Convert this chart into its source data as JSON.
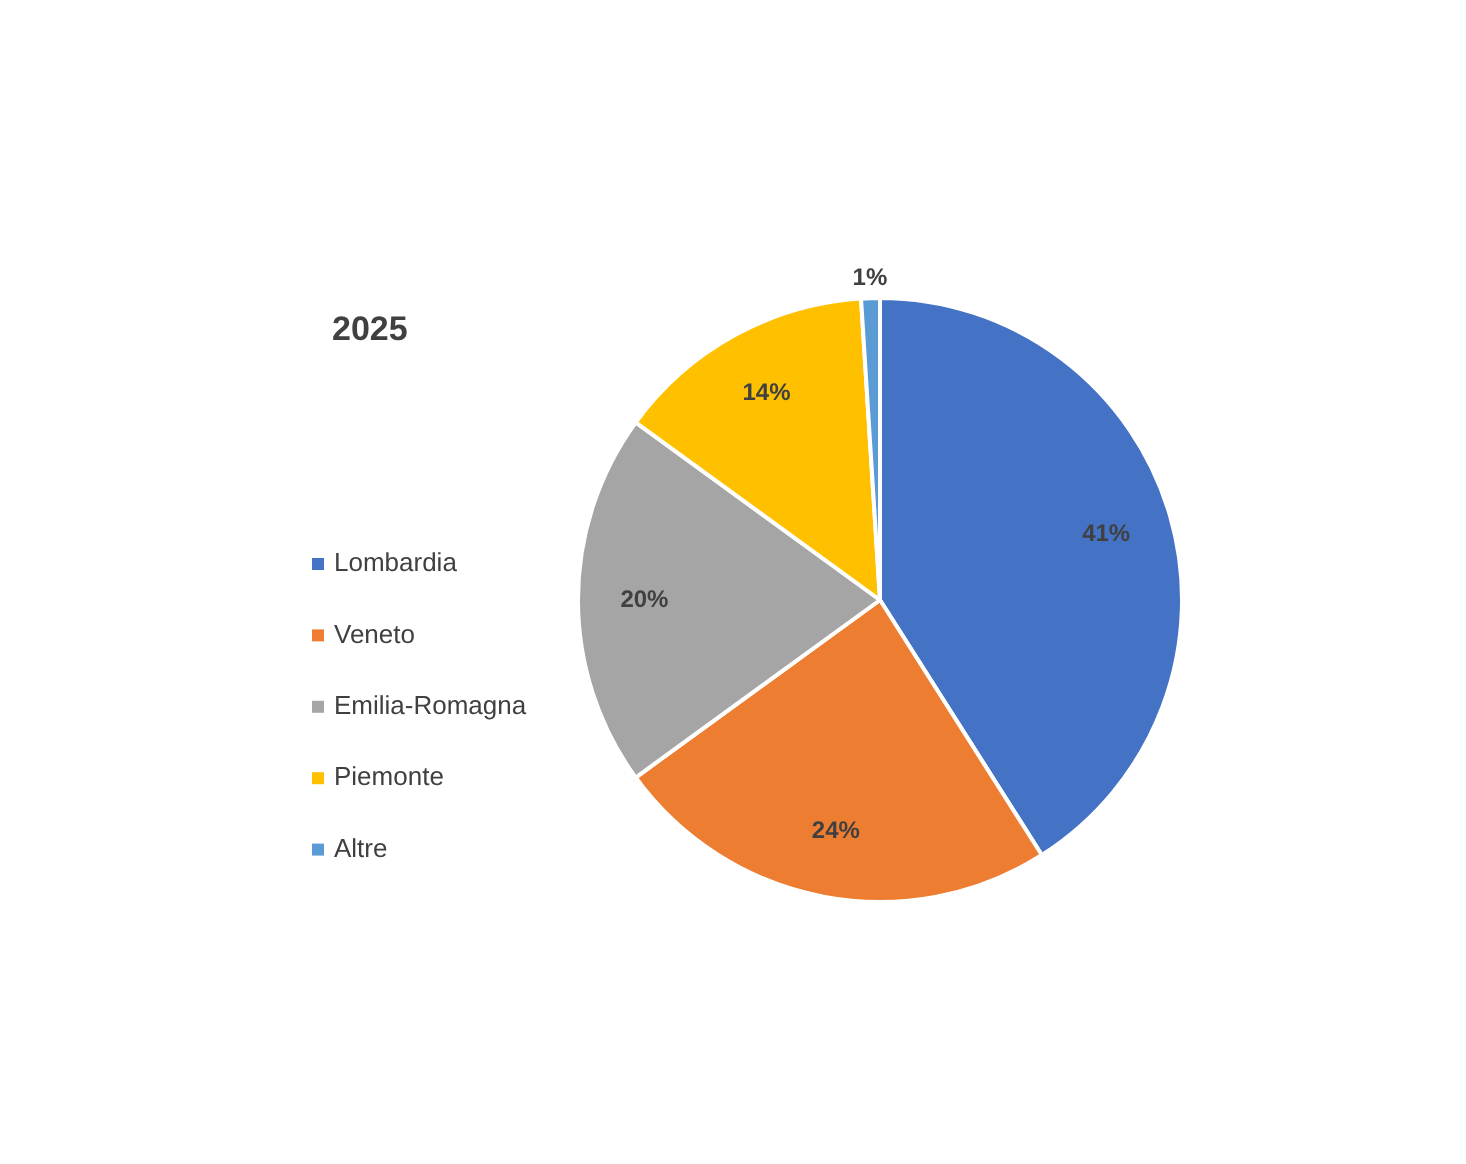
{
  "chart_data": {
    "type": "pie",
    "title": "2025",
    "categories": [
      "Lombardia",
      "Veneto",
      "Emilia-Romagna",
      "Piemonte",
      "Altre"
    ],
    "values": [
      41,
      24,
      20,
      14,
      1
    ],
    "colors": [
      "#4472c4",
      "#ed7d31",
      "#a5a5a5",
      "#ffc000",
      "#5b9bd5"
    ],
    "value_labels": [
      "41%",
      "24%",
      "20%",
      "14%",
      "1%"
    ],
    "legend": "left"
  }
}
